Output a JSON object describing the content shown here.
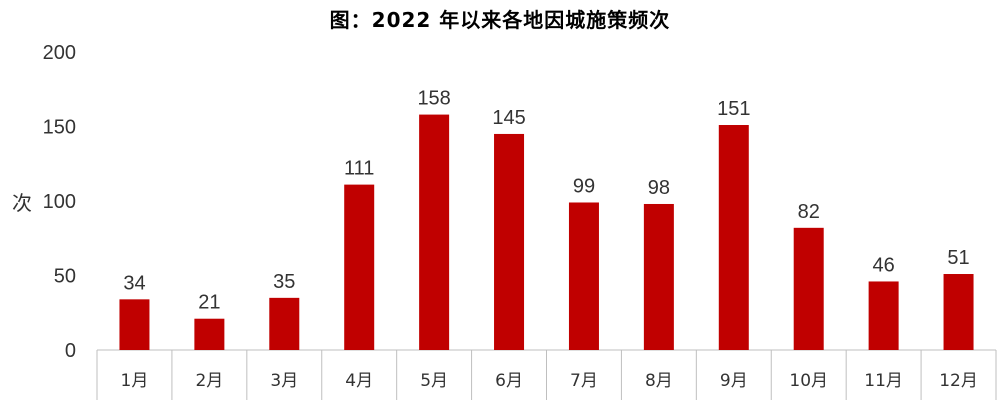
{
  "chart_data": {
    "type": "bar",
    "title": "图：2022 年以来各地因城施策频次",
    "ylabel": "次",
    "xlabel": "",
    "categories": [
      "1月",
      "2月",
      "3月",
      "4月",
      "5月",
      "6月",
      "7月",
      "8月",
      "9月",
      "10月",
      "11月",
      "12月"
    ],
    "values": [
      34,
      21,
      35,
      111,
      158,
      145,
      99,
      98,
      151,
      82,
      46,
      51
    ],
    "ylim": [
      0,
      200
    ],
    "yticks": [
      0,
      50,
      100,
      150,
      200
    ],
    "grid": false,
    "legend": "none",
    "bar_color": "#C00000",
    "data_labels": true
  }
}
